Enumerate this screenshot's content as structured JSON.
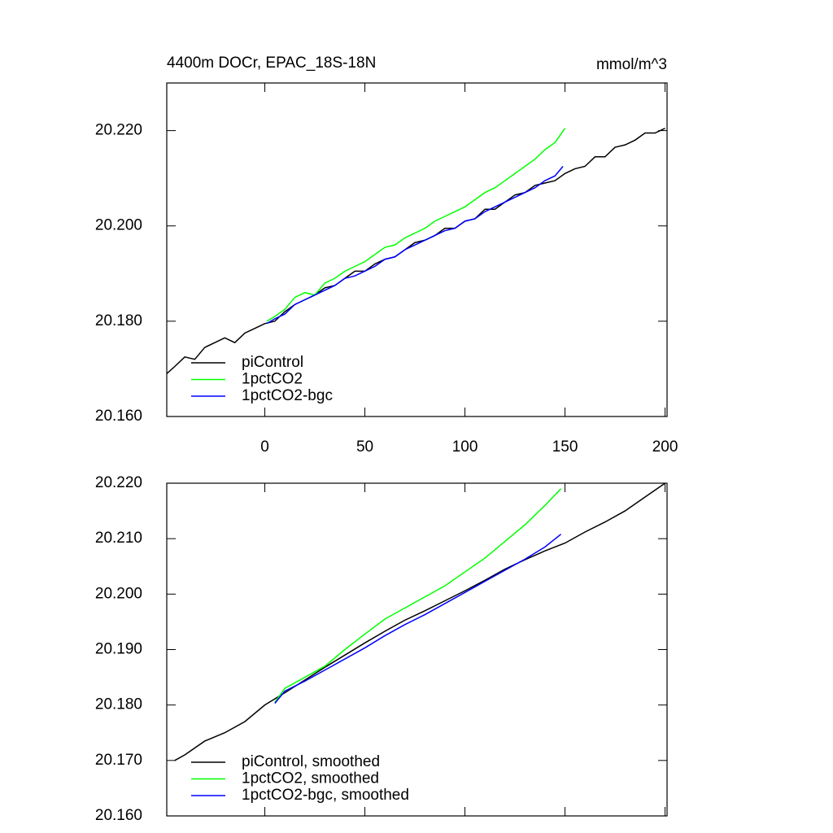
{
  "chart_data": [
    {
      "type": "line",
      "title": "4400m DOCr, EPAC_18S-18N",
      "units": "mmol/m^3",
      "xlim": [
        -49,
        201
      ],
      "xticks": [
        0,
        50,
        100,
        150,
        200
      ],
      "ylim": [
        20.16,
        20.23
      ],
      "yticks": [
        {
          "value": 20.16,
          "label": "20.160"
        },
        {
          "value": 20.18,
          "label": "20.180"
        },
        {
          "value": 20.2,
          "label": "20.200"
        },
        {
          "value": 20.22,
          "label": "20.220"
        }
      ],
      "legend": "lower left",
      "series": [
        {
          "name": "piControl",
          "color": "#000000",
          "x": [
            -49,
            -45,
            -40,
            -35,
            -30,
            -25,
            -20,
            -15,
            -10,
            -5,
            0,
            5,
            10,
            15,
            20,
            25,
            30,
            35,
            40,
            45,
            50,
            55,
            60,
            65,
            70,
            75,
            80,
            85,
            90,
            95,
            100,
            105,
            110,
            115,
            120,
            125,
            130,
            135,
            140,
            145,
            150,
            155,
            160,
            165,
            170,
            175,
            180,
            185,
            190,
            195,
            200
          ],
          "values": [
            20.169,
            20.1705,
            20.1725,
            20.172,
            20.1745,
            20.1755,
            20.1765,
            20.1755,
            20.1775,
            20.1785,
            20.1795,
            20.18,
            20.182,
            20.1835,
            20.1845,
            20.1855,
            20.187,
            20.1875,
            20.189,
            20.1905,
            20.1905,
            20.192,
            20.193,
            20.1935,
            20.195,
            20.1965,
            20.197,
            20.198,
            20.1995,
            20.1995,
            20.201,
            20.2015,
            20.2035,
            20.2035,
            20.205,
            20.2065,
            20.207,
            20.2085,
            20.209,
            20.2095,
            20.211,
            20.212,
            20.2125,
            20.2145,
            20.2145,
            20.2165,
            20.217,
            20.218,
            20.2195,
            20.2195,
            20.2205
          ]
        },
        {
          "name": "1pctCO2",
          "color": "#00ff00",
          "x": [
            1,
            5,
            10,
            15,
            20,
            25,
            30,
            35,
            40,
            45,
            50,
            55,
            60,
            65,
            70,
            75,
            80,
            85,
            90,
            95,
            100,
            105,
            110,
            115,
            120,
            125,
            130,
            135,
            140,
            145,
            150
          ],
          "values": [
            20.18,
            20.181,
            20.1825,
            20.185,
            20.186,
            20.1855,
            20.188,
            20.189,
            20.1905,
            20.1915,
            20.1925,
            20.194,
            20.1955,
            20.196,
            20.1975,
            20.1985,
            20.1995,
            20.201,
            20.202,
            20.203,
            20.204,
            20.2055,
            20.207,
            20.208,
            20.2095,
            20.211,
            20.2125,
            20.214,
            20.216,
            20.2175,
            20.2205
          ]
        },
        {
          "name": "1pctCO2-bgc",
          "color": "#0000ff",
          "x": [
            1,
            5,
            10,
            15,
            20,
            25,
            30,
            35,
            40,
            45,
            50,
            55,
            60,
            65,
            70,
            75,
            80,
            85,
            90,
            95,
            100,
            105,
            110,
            115,
            120,
            125,
            130,
            135,
            140,
            145,
            149
          ],
          "values": [
            20.1795,
            20.1805,
            20.1815,
            20.1835,
            20.1845,
            20.1855,
            20.1865,
            20.1875,
            20.189,
            20.1895,
            20.1905,
            20.1915,
            20.193,
            20.1935,
            20.195,
            20.196,
            20.197,
            20.198,
            20.199,
            20.1995,
            20.201,
            20.2015,
            20.203,
            20.204,
            20.205,
            20.206,
            20.207,
            20.208,
            20.2095,
            20.2105,
            20.2125
          ]
        }
      ]
    },
    {
      "type": "line",
      "xlim": [
        -49,
        201
      ],
      "ylim": [
        20.16,
        20.22
      ],
      "yticks": [
        {
          "value": 20.16,
          "label": "20.160"
        },
        {
          "value": 20.17,
          "label": "20.170"
        },
        {
          "value": 20.18,
          "label": "20.180"
        },
        {
          "value": 20.19,
          "label": "20.190"
        },
        {
          "value": 20.2,
          "label": "20.200"
        },
        {
          "value": 20.21,
          "label": "20.210"
        },
        {
          "value": 20.22,
          "label": "20.220"
        }
      ],
      "legend": "lower left",
      "series": [
        {
          "name": "piControl, smoothed",
          "color": "#000000",
          "x": [
            -45,
            -40,
            -30,
            -20,
            -10,
            0,
            10,
            20,
            30,
            40,
            50,
            60,
            70,
            80,
            90,
            100,
            110,
            120,
            130,
            140,
            150,
            160,
            170,
            180,
            190,
            200
          ],
          "values": [
            20.17,
            20.171,
            20.1735,
            20.175,
            20.177,
            20.18,
            20.1822,
            20.1845,
            20.1868,
            20.189,
            20.1912,
            20.1933,
            20.1953,
            20.197,
            20.1988,
            20.2006,
            20.2025,
            20.2045,
            20.2062,
            20.2078,
            20.2092,
            20.2112,
            20.213,
            20.215,
            20.2175,
            20.22
          ]
        },
        {
          "name": "1pctCO2, smoothed",
          "color": "#00ff00",
          "x": [
            5,
            10,
            20,
            30,
            40,
            50,
            60,
            70,
            80,
            90,
            100,
            110,
            120,
            130,
            140,
            148
          ],
          "values": [
            20.1805,
            20.183,
            20.185,
            20.187,
            20.19,
            20.1928,
            20.1955,
            20.1975,
            20.1995,
            20.2015,
            20.204,
            20.2065,
            20.2095,
            20.2125,
            20.216,
            20.219
          ]
        },
        {
          "name": "1pctCO2-bgc, smoothed",
          "color": "#0000ff",
          "x": [
            5,
            10,
            20,
            30,
            40,
            50,
            60,
            70,
            80,
            90,
            100,
            110,
            120,
            130,
            140,
            148
          ],
          "values": [
            20.1803,
            20.1825,
            20.1843,
            20.1863,
            20.1883,
            20.1903,
            20.1925,
            20.1945,
            20.1963,
            20.1983,
            20.2003,
            20.2023,
            20.2043,
            20.2063,
            20.2085,
            20.2108
          ]
        }
      ]
    }
  ]
}
